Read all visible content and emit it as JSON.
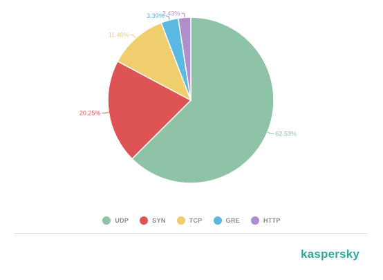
{
  "chart_data": {
    "type": "pie",
    "title": "",
    "categories": [
      "UDP",
      "SYN",
      "TCP",
      "GRE",
      "HTTP"
    ],
    "values": [
      62.53,
      20.25,
      11.4,
      3.39,
      2.43
    ],
    "labels": [
      "62.53%",
      "20.25%",
      "11.40%",
      "3.39%",
      "2.43%"
    ],
    "colors": [
      "#8ec3a7",
      "#de5354",
      "#f0cd6d",
      "#5ab8e3",
      "#ae8fc9"
    ],
    "legend_placement": "bottom-center",
    "start_angle_deg": 0,
    "direction": "clockwise"
  },
  "legend": {
    "items": [
      {
        "label": "UDP",
        "color": "#8ec3a7"
      },
      {
        "label": "SYN",
        "color": "#de5354"
      },
      {
        "label": "TCP",
        "color": "#f0cd6d"
      },
      {
        "label": "GRE",
        "color": "#5ab8e3"
      },
      {
        "label": "HTTP",
        "color": "#ae8fc9"
      }
    ]
  },
  "brand": {
    "logo_text": "kaspersky",
    "color": "#2fa89a"
  }
}
